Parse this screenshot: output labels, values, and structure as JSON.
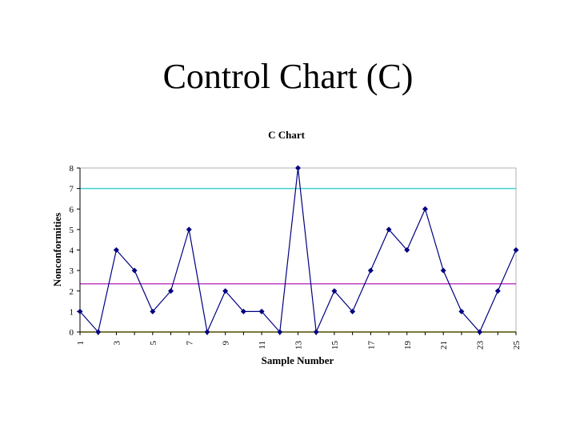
{
  "slide": {
    "title": "Control Chart (C)"
  },
  "chart_data": {
    "type": "line",
    "title": "C Chart",
    "xlabel": "Sample Number",
    "ylabel": "Nonconformities",
    "x": [
      1,
      2,
      3,
      4,
      5,
      6,
      7,
      8,
      9,
      10,
      11,
      12,
      13,
      14,
      15,
      16,
      17,
      18,
      19,
      20,
      21,
      22,
      23,
      24,
      25
    ],
    "x_tick_labels": [
      "1",
      "3",
      "5",
      "7",
      "9",
      "11",
      "13",
      "15",
      "17",
      "19",
      "21",
      "23",
      "25"
    ],
    "y_ticks": [
      0,
      1,
      2,
      3,
      4,
      5,
      6,
      7,
      8
    ],
    "ylim": [
      0,
      8
    ],
    "grid": false,
    "legend": "none",
    "series": [
      {
        "values": [
          1,
          0,
          4,
          3,
          1,
          2,
          5,
          0,
          2,
          1,
          1,
          0,
          8,
          0,
          2,
          1,
          3,
          5,
          4,
          6,
          3,
          1,
          0,
          2,
          4
        ],
        "color": "#000080",
        "marker": "diamond"
      }
    ],
    "reference_lines": [
      {
        "value": 7.0,
        "color": "#40d0d0"
      },
      {
        "value": 2.35,
        "color": "#c040c0"
      },
      {
        "value": 0.0,
        "color": "#f0e000"
      }
    ],
    "plot_area_border": "#b0b0b0"
  }
}
